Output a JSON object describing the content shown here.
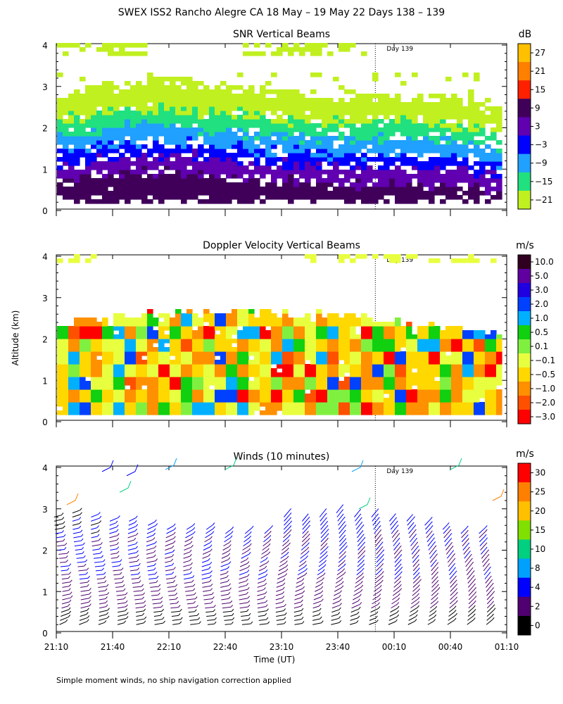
{
  "page": {
    "title": "SWEX ISS2 Rancho Alegre CA  18 May – 19 May 22 Days 138 – 139",
    "ylabel": "Altitude (km)",
    "xlabel": "Time (UT)",
    "footnote": "Simple moment winds, no ship navigation correction applied"
  },
  "chart_data": [
    {
      "type": "heatmap",
      "title": "SNR Vertical Beams",
      "xlabel": "Time (UT)",
      "ylabel": "Altitude (km)",
      "x_tick_labels": [
        "21:10",
        "21:40",
        "22:10",
        "22:40",
        "23:10",
        "23:40",
        "00:10",
        "00:40",
        "01:10"
      ],
      "y_ticks": [
        0,
        1,
        2,
        3,
        4
      ],
      "ylim": [
        0,
        4
      ],
      "day_marker": {
        "label": "Day 139",
        "time": "00:00"
      },
      "colorbar": {
        "unit": "dB",
        "tick_labels": [
          "27",
          "21",
          "15",
          "9",
          "3",
          "−3",
          "−9",
          "−15",
          "−21"
        ],
        "colors": [
          "#ffc000",
          "#ff7f00",
          "#ff2000",
          "#40005a",
          "#6000b0",
          "#0000ff",
          "#20a0ff",
          "#20e080",
          "#c0f020"
        ]
      },
      "layers": [
        {
          "from_km": 0.15,
          "to_km": 0.55,
          "class": "9 to 15 dB"
        },
        {
          "from_km": 0.55,
          "to_km": 0.95,
          "class": "3 to 9 dB"
        },
        {
          "from_km": 0.95,
          "to_km": 1.25,
          "class": "-3 to 3 dB"
        },
        {
          "from_km": 1.25,
          "to_km": 1.65,
          "class": "-9 to -3 dB"
        },
        {
          "from_km": 1.65,
          "to_km": 2.05,
          "class": "-15 to -9 dB"
        },
        {
          "from_km": 2.05,
          "to_km": 2.6,
          "class": "-21 to -15 dB"
        }
      ]
    },
    {
      "type": "heatmap",
      "title": "Doppler Velocity Vertical Beams",
      "xlabel": "Time (UT)",
      "ylabel": "Altitude (km)",
      "x_tick_labels": [
        "21:10",
        "21:40",
        "22:10",
        "22:40",
        "23:10",
        "23:40",
        "00:10",
        "00:40",
        "01:10"
      ],
      "y_ticks": [
        0,
        1,
        2,
        3,
        4
      ],
      "ylim": [
        0,
        4
      ],
      "day_marker": {
        "label": "Day 139",
        "time": "00:00"
      },
      "colorbar": {
        "unit": "m/s",
        "tick_labels": [
          "10.0",
          "5.0",
          "3.0",
          "2.0",
          "1.0",
          "0.5",
          "0.1",
          "−0.1",
          "−0.5",
          "−1.0",
          "−2.0",
          "−3.0"
        ],
        "colors": [
          "#300020",
          "#6000a0",
          "#2000e0",
          "#0040ff",
          "#00b0ff",
          "#10d010",
          "#80f040",
          "#e8ff40",
          "#ffd800",
          "#ff9000",
          "#ff5000",
          "#ff0000"
        ]
      }
    },
    {
      "type": "scatter",
      "title": "Winds (10 minutes)",
      "xlabel": "Time (UT)",
      "ylabel": "Altitude (km)",
      "x_tick_labels": [
        "21:10",
        "21:40",
        "22:10",
        "22:40",
        "23:10",
        "23:40",
        "00:10",
        "00:40",
        "01:10"
      ],
      "y_ticks": [
        0,
        1,
        2,
        3,
        4
      ],
      "ylim": [
        0,
        4
      ],
      "day_marker": {
        "label": "Day 139",
        "time": "00:00"
      },
      "colorbar": {
        "unit": "m/s",
        "tick_labels": [
          "30",
          "25",
          "20",
          "15",
          "10",
          "8",
          "4",
          "2",
          "0"
        ],
        "colors": [
          "#ff0000",
          "#ff8000",
          "#ffc000",
          "#80e000",
          "#00d080",
          "#00a0ff",
          "#0000ff",
          "#500070",
          "#000000"
        ]
      },
      "profile_times": [
        "21:10",
        "21:20",
        "21:30",
        "21:40",
        "21:50",
        "22:00",
        "22:10",
        "22:20",
        "22:30",
        "22:40",
        "22:50",
        "23:00",
        "23:10",
        "23:20",
        "23:30",
        "23:40",
        "23:50",
        "00:00",
        "00:10",
        "00:20",
        "00:30",
        "00:40",
        "00:50",
        "01:00"
      ],
      "profile_top_km": [
        2.9,
        3.0,
        2.9,
        2.8,
        2.8,
        2.7,
        2.6,
        2.6,
        2.6,
        2.5,
        2.5,
        2.5,
        2.9,
        2.8,
        2.9,
        3.0,
        2.9,
        2.9,
        2.8,
        2.8,
        2.7,
        2.6,
        2.5,
        2.5
      ]
    }
  ]
}
